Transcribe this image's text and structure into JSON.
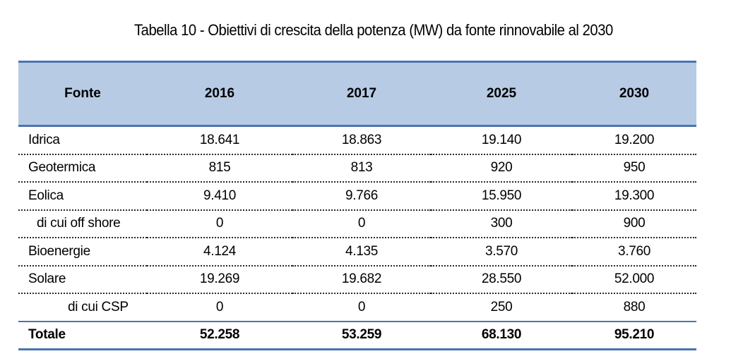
{
  "title": "Tabella 10 - Obiettivi di crescita della potenza (MW) da fonte rinnovabile al 2030",
  "table": {
    "headers": [
      "Fonte",
      "2016",
      "2017",
      "2025",
      "2030"
    ],
    "rows": [
      {
        "label": "Idrica",
        "values": [
          "18.641",
          "18.863",
          "19.140",
          "19.200"
        ]
      },
      {
        "label": "Geotermica",
        "values": [
          "815",
          "813",
          "920",
          "950"
        ]
      },
      {
        "label": "Eolica",
        "values": [
          "9.410",
          "9.766",
          "15.950",
          "19.300"
        ]
      },
      {
        "label": "di cui off shore",
        "values": [
          "0",
          "0",
          "300",
          "900"
        ]
      },
      {
        "label": "Bioenergie",
        "values": [
          "4.124",
          "4.135",
          "3.570",
          "3.760"
        ]
      },
      {
        "label": "Solare",
        "values": [
          "19.269",
          "19.682",
          "28.550",
          "52.000"
        ]
      },
      {
        "label": "di cui CSP",
        "values": [
          "0",
          "0",
          "250",
          "880"
        ]
      },
      {
        "label": "Totale",
        "values": [
          "52.258",
          "53.259",
          "68.130",
          "95.210"
        ]
      }
    ]
  },
  "colors": {
    "header_bg": "#b7cbe4",
    "rule": "#4a74b0"
  }
}
